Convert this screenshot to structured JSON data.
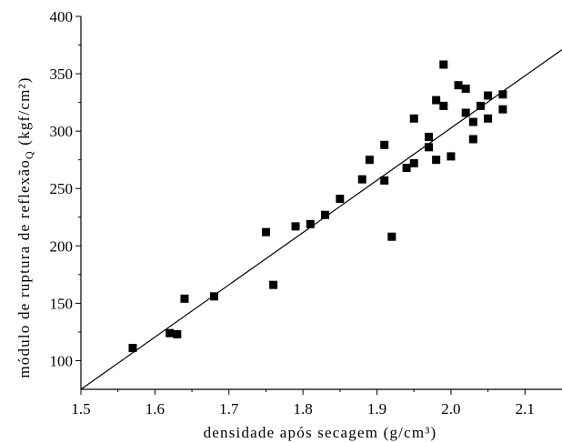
{
  "chart_data": {
    "type": "scatter",
    "xlabel": "densidade após secagem (g/cm³)",
    "ylabel": "módulo de ruptura de reflexão",
    "ylabel_subscript": "Q",
    "ylabel_unit": " (kgf/cm²)",
    "xlim": [
      1.5,
      2.15
    ],
    "ylim": [
      75,
      400
    ],
    "x_ticks": [
      1.5,
      1.6,
      1.7,
      1.8,
      1.9,
      2.0,
      2.1
    ],
    "x_tick_labels": [
      "1.5",
      "1.6",
      "1.7",
      "1.8",
      "1.9",
      "2.0",
      "2.1"
    ],
    "y_ticks": [
      100,
      150,
      200,
      250,
      300,
      350,
      400
    ],
    "y_tick_labels": [
      "100",
      "150",
      "200",
      "250",
      "300",
      "350",
      "400"
    ],
    "grid": false,
    "marker": "square",
    "color": "#000000",
    "points": [
      [
        1.57,
        111
      ],
      [
        1.62,
        124
      ],
      [
        1.63,
        123
      ],
      [
        1.64,
        154
      ],
      [
        1.68,
        156
      ],
      [
        1.75,
        212
      ],
      [
        1.76,
        166
      ],
      [
        1.79,
        217
      ],
      [
        1.81,
        219
      ],
      [
        1.83,
        227
      ],
      [
        1.85,
        241
      ],
      [
        1.88,
        258
      ],
      [
        1.89,
        275
      ],
      [
        1.91,
        288
      ],
      [
        1.91,
        257
      ],
      [
        1.92,
        208
      ],
      [
        1.94,
        268
      ],
      [
        1.95,
        311
      ],
      [
        1.95,
        272
      ],
      [
        1.97,
        286
      ],
      [
        1.97,
        295
      ],
      [
        1.98,
        327
      ],
      [
        1.98,
        275
      ],
      [
        1.99,
        358
      ],
      [
        1.99,
        322
      ],
      [
        2.0,
        278
      ],
      [
        2.01,
        340
      ],
      [
        2.02,
        337
      ],
      [
        2.02,
        316
      ],
      [
        2.03,
        308
      ],
      [
        2.03,
        293
      ],
      [
        2.04,
        322
      ],
      [
        2.05,
        331
      ],
      [
        2.05,
        311
      ],
      [
        2.07,
        332
      ],
      [
        2.07,
        319
      ]
    ],
    "fit_line": [
      [
        1.5,
        75
      ],
      [
        2.15,
        371
      ]
    ]
  }
}
